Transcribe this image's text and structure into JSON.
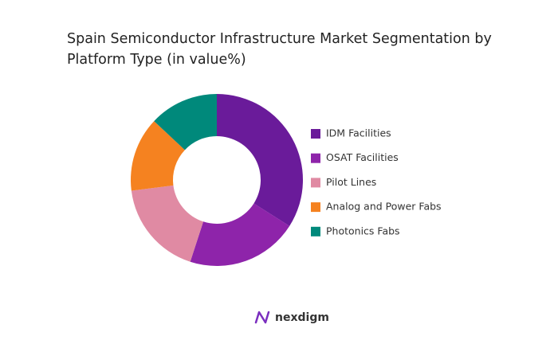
{
  "chart_data": {
    "type": "donut",
    "title": "Spain Semiconductor Infrastructure Market Segmentation by Platform Type (in value%)",
    "categories": [
      "IDM Facilities",
      "OSAT Facilities",
      "Pilot Lines",
      "Analog and Power Fabs",
      "Photonics Fabs"
    ],
    "values": [
      34,
      21,
      18,
      14,
      13
    ],
    "colors": [
      "#6a1b9a",
      "#8e24aa",
      "#e08aa3",
      "#f58220",
      "#00897b"
    ]
  },
  "brand": "nexdigm"
}
